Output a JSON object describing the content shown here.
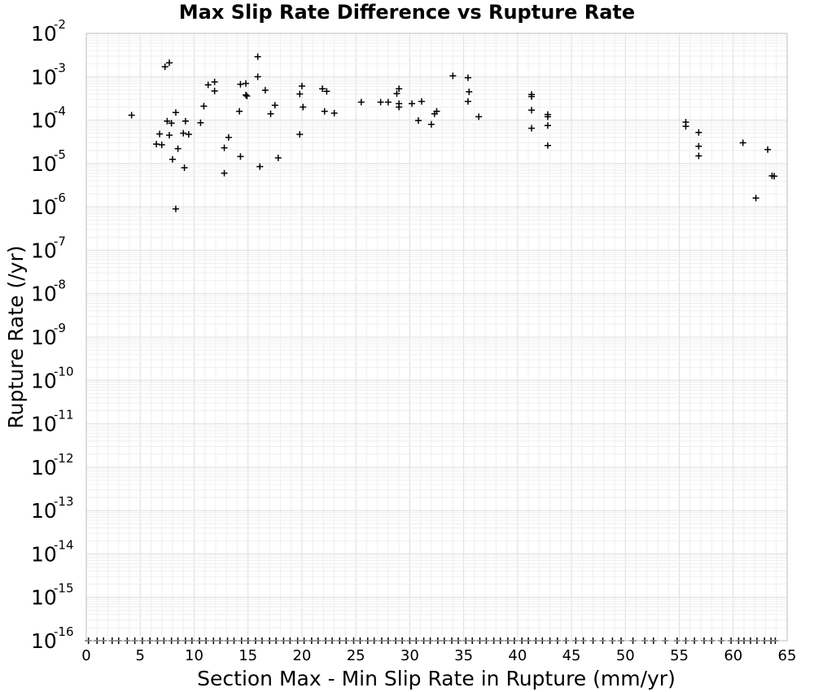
{
  "chart_data": {
    "type": "scatter",
    "title": "Max Slip Rate Difference vs Rupture Rate",
    "xlabel": "Section Max - Min Slip Rate in Rupture (mm/yr)",
    "ylabel": "Rupture Rate (/yr)",
    "xlim": [
      0,
      65
    ],
    "ylim": [
      1e-16,
      0.01
    ],
    "yscale": "log",
    "grid": true,
    "marker": "plus",
    "marker_color": "#000000",
    "x_ticks": [
      "0",
      "5",
      "10",
      "15",
      "20",
      "25",
      "30",
      "35",
      "40",
      "45",
      "50",
      "55",
      "60",
      "65"
    ],
    "y_ticks": [
      {
        "base": "10",
        "exp": "-2"
      },
      {
        "base": "10",
        "exp": "-3"
      },
      {
        "base": "10",
        "exp": "-4"
      },
      {
        "base": "10",
        "exp": "-5"
      },
      {
        "base": "10",
        "exp": "-6"
      },
      {
        "base": "10",
        "exp": "-7"
      },
      {
        "base": "10",
        "exp": "-8"
      },
      {
        "base": "10",
        "exp": "-9"
      },
      {
        "base": "10",
        "exp": "-10"
      },
      {
        "base": "10",
        "exp": "-11"
      },
      {
        "base": "10",
        "exp": "-12"
      },
      {
        "base": "10",
        "exp": "-13"
      },
      {
        "base": "10",
        "exp": "-14"
      },
      {
        "base": "10",
        "exp": "-15"
      },
      {
        "base": "10",
        "exp": "-16"
      }
    ],
    "points": [
      [
        4.2,
        0.00013
      ],
      [
        6.5,
        2.8e-05
      ],
      [
        6.8,
        4.8e-05
      ],
      [
        7.0,
        2.7e-05
      ],
      [
        7.3,
        0.0017
      ],
      [
        7.5,
        9.5e-05
      ],
      [
        7.7,
        0.0021
      ],
      [
        7.7,
        4.5e-05
      ],
      [
        7.9,
        8.5e-05
      ],
      [
        8.0,
        1.25e-05
      ],
      [
        8.3,
        0.00015
      ],
      [
        8.3,
        9e-07
      ],
      [
        8.5,
        2.2e-05
      ],
      [
        9.0,
        5e-05
      ],
      [
        9.1,
        8e-06
      ],
      [
        9.2,
        9.5e-05
      ],
      [
        9.5,
        4.7e-05
      ],
      [
        10.6,
        8.7e-05
      ],
      [
        10.9,
        0.00021
      ],
      [
        11.3,
        0.00065
      ],
      [
        11.9,
        0.00076
      ],
      [
        11.9,
        0.00047
      ],
      [
        12.8,
        2.3e-05
      ],
      [
        12.8,
        6e-06
      ],
      [
        13.2,
        4e-05
      ],
      [
        14.2,
        0.00016
      ],
      [
        14.3,
        0.00067
      ],
      [
        14.3,
        1.45e-05
      ],
      [
        14.8,
        0.0007
      ],
      [
        14.8,
        0.00038
      ],
      [
        14.9,
        0.00036
      ],
      [
        15.9,
        0.0029
      ],
      [
        15.9,
        0.001
      ],
      [
        16.1,
        8.5e-06
      ],
      [
        16.6,
        0.00049
      ],
      [
        17.1,
        0.00014
      ],
      [
        17.5,
        0.00022
      ],
      [
        17.8,
        1.35e-05
      ],
      [
        19.8,
        0.0004
      ],
      [
        19.8,
        4.7e-05
      ],
      [
        20.0,
        0.00061
      ],
      [
        20.1,
        0.0002
      ],
      [
        21.9,
        0.00053
      ],
      [
        22.1,
        0.00016
      ],
      [
        22.3,
        0.00046
      ],
      [
        23.0,
        0.000145
      ],
      [
        25.5,
        0.00026
      ],
      [
        27.3,
        0.00026
      ],
      [
        28.0,
        0.00026
      ],
      [
        28.8,
        0.00041
      ],
      [
        29.0,
        0.00053
      ],
      [
        29.0,
        0.00024
      ],
      [
        29.0,
        0.0002
      ],
      [
        30.2,
        0.00024
      ],
      [
        30.8,
        9.8e-05
      ],
      [
        31.1,
        0.00027
      ],
      [
        32.0,
        8e-05
      ],
      [
        32.3,
        0.00014
      ],
      [
        32.5,
        0.00016
      ],
      [
        34.0,
        0.00105
      ],
      [
        35.4,
        0.00095
      ],
      [
        35.5,
        0.00045
      ],
      [
        35.4,
        0.00027
      ],
      [
        36.4,
        0.00012
      ],
      [
        41.3,
        0.00039
      ],
      [
        41.3,
        0.00035
      ],
      [
        41.3,
        0.00017
      ],
      [
        41.3,
        6.5e-05
      ],
      [
        42.8,
        0.000135
      ],
      [
        42.8,
        0.00012
      ],
      [
        42.8,
        7.5e-05
      ],
      [
        42.8,
        2.6e-05
      ],
      [
        55.6,
        9e-05
      ],
      [
        55.6,
        7.2e-05
      ],
      [
        56.8,
        5.2e-05
      ],
      [
        56.8,
        2.5e-05
      ],
      [
        56.8,
        1.5e-05
      ],
      [
        60.9,
        3e-05
      ],
      [
        62.1,
        1.6e-06
      ],
      [
        63.2,
        2.1e-05
      ],
      [
        63.6,
        5.2e-06
      ],
      [
        63.8,
        5.1e-06
      ]
    ],
    "floor_points_x": [
      0.2,
      1.0,
      1.6,
      2.4,
      3.0,
      3.8,
      4.5,
      5.2,
      5.9,
      6.6,
      7.2,
      7.9,
      8.5,
      9.2,
      9.8,
      10.5,
      11.1,
      11.8,
      12.4,
      13.1,
      13.7,
      14.4,
      15.0,
      15.7,
      16.3,
      17.0,
      17.6,
      18.3,
      18.9,
      19.6,
      20.2,
      20.9,
      21.5,
      22.2,
      22.8,
      23.5,
      24.1,
      24.8,
      25.4,
      26.1,
      26.7,
      27.4,
      28.0,
      28.7,
      29.3,
      30.0,
      30.6,
      31.3,
      31.9,
      32.6,
      33.2,
      33.9,
      34.5,
      35.2,
      35.8,
      36.5,
      37.1,
      37.8,
      38.4,
      39.1,
      39.7,
      40.4,
      41.0,
      41.7,
      42.3,
      43.0,
      43.7,
      44.5,
      45.4,
      46.1,
      47.0,
      47.9,
      48.8,
      49.6,
      50.7,
      51.8,
      52.6,
      53.7,
      54.8,
      55.6,
      56.4,
      57.3,
      58.0,
      58.9,
      59.8,
      60.5,
      61.0,
      61.6,
      62.2,
      62.9,
      63.5,
      63.9
    ]
  }
}
